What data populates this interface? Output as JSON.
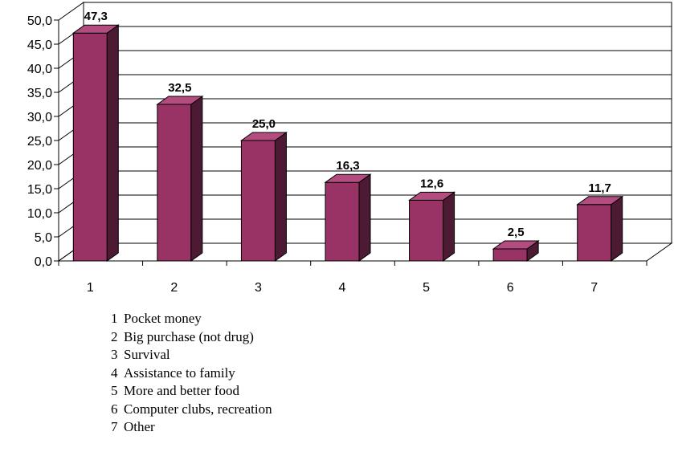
{
  "chart_data": {
    "type": "bar",
    "title": "",
    "xlabel": "",
    "ylabel": "",
    "categories": [
      "1",
      "2",
      "3",
      "4",
      "5",
      "6",
      "7"
    ],
    "values": [
      47.3,
      32.5,
      25.0,
      16.3,
      12.6,
      2.5,
      11.7
    ],
    "value_labels": [
      "47,3",
      "32,5",
      "25,0",
      "16,3",
      "12,6",
      "2,5",
      "11,7"
    ],
    "ylim": [
      0,
      50
    ],
    "yticks": [
      "0,0",
      "5,0",
      "10,0",
      "15,0",
      "20,0",
      "25,0",
      "30,0",
      "35,0",
      "40,0",
      "45,0",
      "50,0"
    ],
    "grid": true,
    "bar_color": "#993366",
    "legend": [
      {
        "num": "1",
        "label": "Pocket money"
      },
      {
        "num": "2",
        "label": "Big purchase (not drug)"
      },
      {
        "num": "3",
        "label": "Survival"
      },
      {
        "num": "4",
        "label": "Assistance to family"
      },
      {
        "num": "5",
        "label": "More and better food"
      },
      {
        "num": "6",
        "label": "Computer clubs, recreation"
      },
      {
        "num": "7",
        "label": "Other"
      }
    ]
  }
}
